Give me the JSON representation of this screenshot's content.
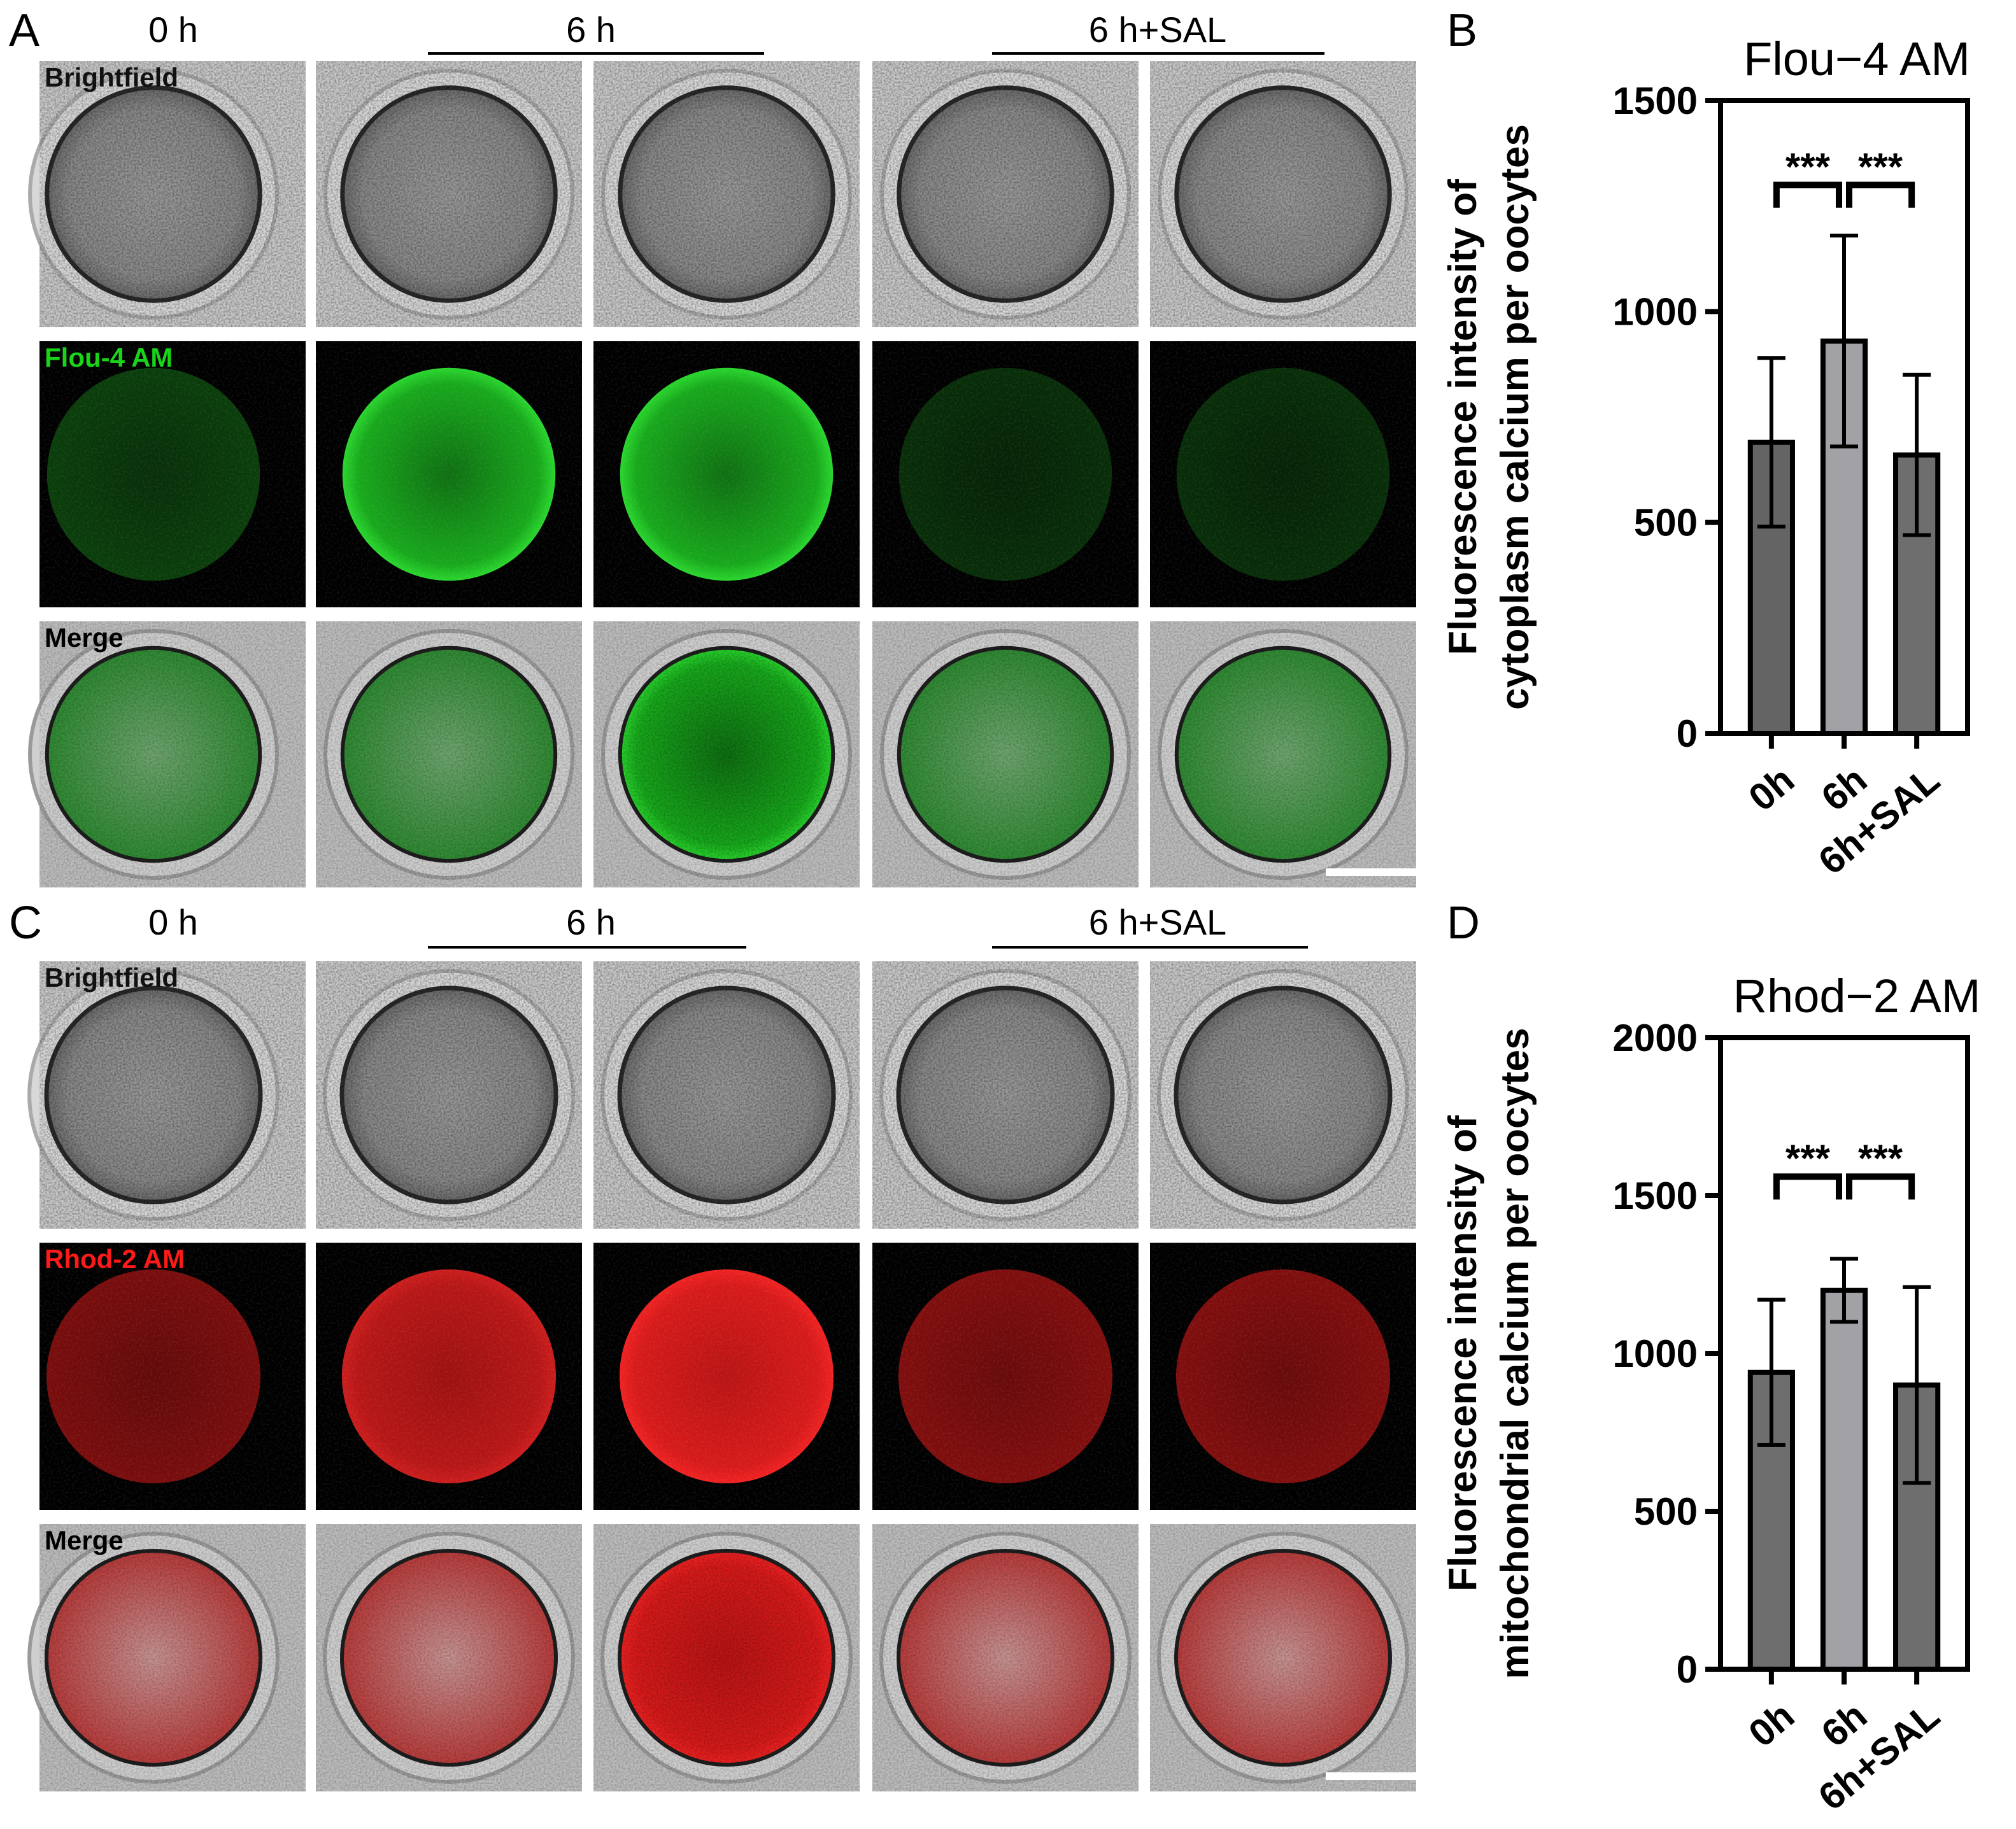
{
  "panels": {
    "A": {
      "letter": "A",
      "col_labels": [
        "0 h",
        "6 h",
        "6 h+SAL"
      ],
      "row_labels": [
        "Brightfield",
        "Flou-4 AM",
        "Merge"
      ],
      "stain_color": "#19d419"
    },
    "C": {
      "letter": "C",
      "col_labels": [
        "0 h",
        "6 h",
        "6 h+SAL"
      ],
      "row_labels": [
        "Brightfield",
        "Rhod-2 AM",
        "Merge"
      ],
      "stain_color": "#ff1a1a"
    },
    "B": {
      "letter": "B"
    },
    "D": {
      "letter": "D"
    }
  },
  "chart_data": [
    {
      "type": "bar",
      "panel": "B",
      "title": "Flou−4 AM",
      "ylabel_lines": [
        "Fluorescence intensity of",
        "cytoplasm calcium per oocytes"
      ],
      "categories": [
        "0h",
        "6h",
        "6h+SAL"
      ],
      "values": [
        690,
        930,
        660
      ],
      "errors": [
        200,
        250,
        190
      ],
      "bar_colors": [
        "#646464",
        "#a2a2a6",
        "#6e6e6e"
      ],
      "ylim": [
        0,
        1500
      ],
      "yticks": [
        0,
        500,
        1000,
        1500
      ],
      "annotations": [
        {
          "from": 0,
          "to": 1,
          "label": "***"
        },
        {
          "from": 1,
          "to": 2,
          "label": "***"
        }
      ],
      "bracket_value": 1300
    },
    {
      "type": "bar",
      "panel": "D",
      "title": "Rhod−2 AM",
      "ylabel_lines": [
        "Fluorescence intensity of",
        "mitochondrial calcium per oocytes"
      ],
      "categories": [
        "0h",
        "6h",
        "6h+SAL"
      ],
      "values": [
        940,
        1200,
        900
      ],
      "errors": [
        230,
        100,
        310
      ],
      "bar_colors": [
        "#6e6e6e",
        "#a2a2a6",
        "#6e6e6e"
      ],
      "ylim": [
        0,
        2000
      ],
      "yticks": [
        0,
        500,
        1000,
        1500,
        2000
      ],
      "annotations": [
        {
          "from": 0,
          "to": 1,
          "label": "***"
        },
        {
          "from": 1,
          "to": 2,
          "label": "***"
        }
      ],
      "bracket_value": 1560
    }
  ]
}
